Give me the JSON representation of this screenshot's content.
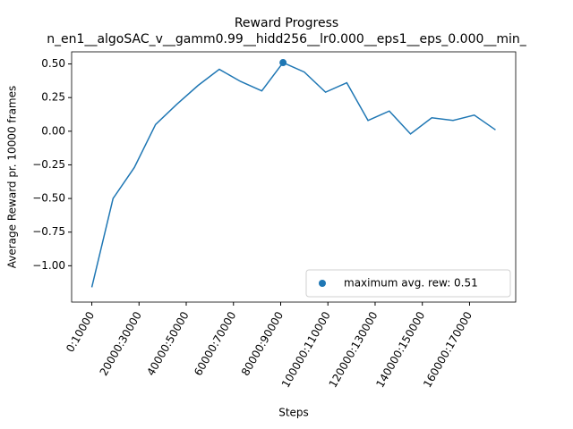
{
  "chart_data": {
    "type": "line",
    "title": "Reward Progress",
    "subtitle": "n_en1__algoSAC_v__gamm0.99__hidd256__lr0.000__eps1__eps_0.000__min_",
    "x_label": "Steps",
    "y_label": "Average Reward pr. 10000 frames",
    "x": [
      0,
      1,
      2,
      3,
      4,
      5,
      6,
      7,
      8,
      9,
      10,
      11,
      12,
      13,
      14,
      15,
      16,
      17,
      18,
      19
    ],
    "series": [
      {
        "color": "#1f77b4",
        "values": [
          -1.16,
          -0.5,
          -0.27,
          0.05,
          0.2,
          0.34,
          0.46,
          0.37,
          0.3,
          0.51,
          0.44,
          0.29,
          0.36,
          0.08,
          0.15,
          -0.02,
          0.1,
          0.08,
          0.12,
          0.01
        ]
      }
    ],
    "highlight": {
      "name": "maximum avg. rew: 0.51",
      "x": 9,
      "value": 0.51,
      "color": "#1f77b4"
    },
    "xlim": [
      -0.95,
      19.95
    ],
    "xticks": [
      {
        "value": 0,
        "label": "0:10000"
      },
      {
        "value": 2.222,
        "label": "20000:30000"
      },
      {
        "value": 4.444,
        "label": "40000:50000"
      },
      {
        "value": 6.667,
        "label": "60000:70000"
      },
      {
        "value": 8.889,
        "label": "80000:90000"
      },
      {
        "value": 11.111,
        "label": "100000:110000"
      },
      {
        "value": 13.333,
        "label": "120000:130000"
      },
      {
        "value": 15.556,
        "label": "140000:150000"
      },
      {
        "value": 17.778,
        "label": "160000:170000"
      }
    ],
    "ylim": [
      -1.27,
      0.59
    ],
    "yticks": [
      {
        "value": -1.0,
        "label": "−1.00"
      },
      {
        "value": -0.75,
        "label": "−0.75"
      },
      {
        "value": -0.5,
        "label": "−0.50"
      },
      {
        "value": -0.25,
        "label": "−0.25"
      },
      {
        "value": 0,
        "label": "0.00"
      },
      {
        "value": 0.25,
        "label": "0.25"
      },
      {
        "value": 0.5,
        "label": "0.50"
      }
    ],
    "legend": "lower right",
    "grid": false
  }
}
